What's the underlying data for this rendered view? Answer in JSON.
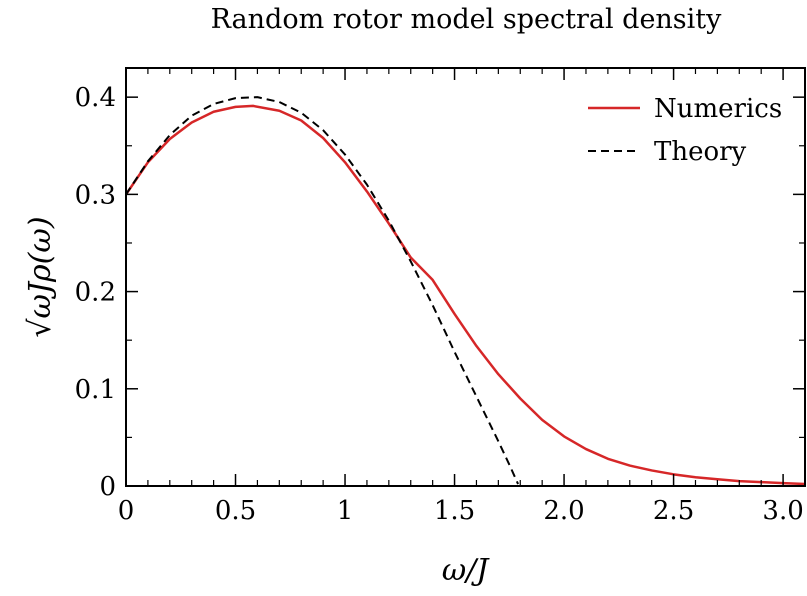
{
  "chart_data": {
    "type": "line",
    "title": "Random rotor model spectral density",
    "xlabel": "ω/J",
    "ylabel": "√ωJρ(ω)",
    "xlim": [
      0,
      3.1
    ],
    "ylim": [
      0,
      0.43
    ],
    "x_ticks": [
      {
        "value": 0,
        "label": "0"
      },
      {
        "value": 0.5,
        "label": "0.5"
      },
      {
        "value": 1,
        "label": "1"
      },
      {
        "value": 1.5,
        "label": "1.5"
      },
      {
        "value": 2,
        "label": "2.0"
      },
      {
        "value": 2.5,
        "label": "2.5"
      },
      {
        "value": 3,
        "label": "3.0"
      }
    ],
    "y_ticks": [
      {
        "value": 0,
        "label": "0"
      },
      {
        "value": 0.1,
        "label": "0.1"
      },
      {
        "value": 0.2,
        "label": "0.2"
      },
      {
        "value": 0.3,
        "label": "0.3"
      },
      {
        "value": 0.4,
        "label": "0.4"
      }
    ],
    "grid": false,
    "legend_position": "top-right",
    "series": [
      {
        "name": "Numerics",
        "color": "#d62728",
        "style": "solid",
        "x": [
          0,
          0.1,
          0.2,
          0.3,
          0.4,
          0.5,
          0.58,
          0.7,
          0.8,
          0.9,
          1.0,
          1.1,
          1.2,
          1.3,
          1.4,
          1.5,
          1.6,
          1.7,
          1.8,
          1.9,
          2.0,
          2.1,
          2.2,
          2.3,
          2.4,
          2.5,
          2.6,
          2.7,
          2.8,
          2.9,
          3.0,
          3.1
        ],
        "y": [
          0.3,
          0.333,
          0.357,
          0.374,
          0.385,
          0.39,
          0.391,
          0.386,
          0.376,
          0.358,
          0.333,
          0.303,
          0.27,
          0.235,
          0.212,
          0.177,
          0.144,
          0.115,
          0.09,
          0.068,
          0.051,
          0.038,
          0.028,
          0.021,
          0.016,
          0.012,
          0.009,
          0.007,
          0.005,
          0.004,
          0.003,
          0.002
        ]
      },
      {
        "name": "Theory",
        "color": "#000000",
        "style": "dashed",
        "x": [
          0,
          0.1,
          0.2,
          0.3,
          0.4,
          0.5,
          0.6,
          0.7,
          0.8,
          0.9,
          1.0,
          1.1,
          1.2,
          1.3,
          1.4,
          1.5,
          1.6,
          1.7,
          1.75,
          1.79
        ],
        "y": [
          0.3,
          0.334,
          0.361,
          0.381,
          0.393,
          0.399,
          0.4,
          0.395,
          0.384,
          0.366,
          0.341,
          0.31,
          0.273,
          0.231,
          0.186,
          0.138,
          0.092,
          0.046,
          0.022,
          0.002
        ]
      }
    ]
  }
}
